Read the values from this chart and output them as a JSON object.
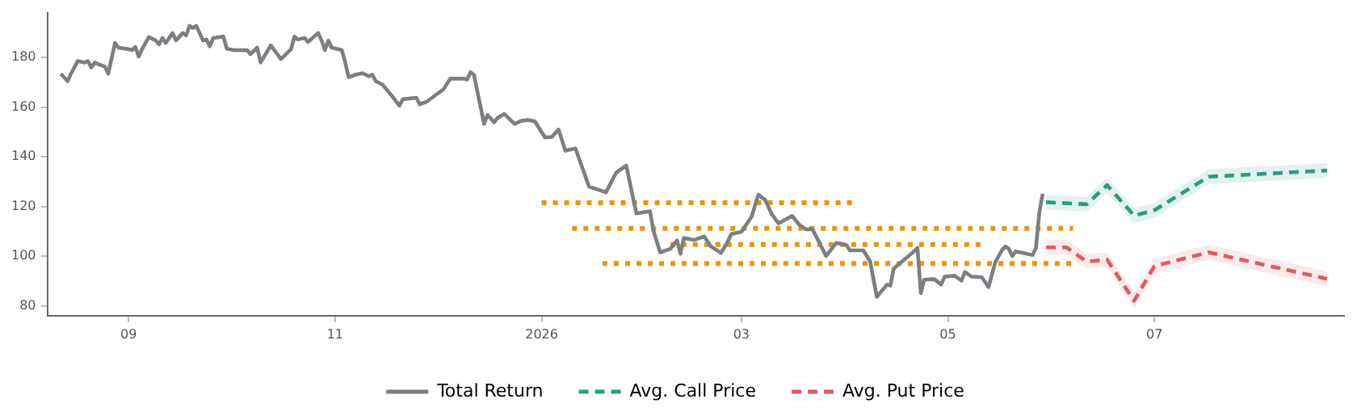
{
  "chart_data": {
    "type": "line",
    "xlim": [
      "2025-08-08",
      "2026-08-26"
    ],
    "ylim": [
      76,
      198
    ],
    "xticks": [
      {
        "value": "2025-09",
        "label": "09"
      },
      {
        "value": "2025-11",
        "label": "11"
      },
      {
        "value": "2026-01",
        "label": "2026"
      },
      {
        "value": "2026-03",
        "label": "03"
      },
      {
        "value": "2026-05",
        "label": "05"
      },
      {
        "value": "2026-07",
        "label": "07"
      }
    ],
    "yticks": [
      80,
      100,
      120,
      140,
      160,
      180
    ],
    "legend": "bottom",
    "marker": "none",
    "series": [
      {
        "name": "Total Return",
        "color": "#7b7f84",
        "line_style": "solid",
        "x": [
          "2025-08-12",
          "2025-08-14",
          "2025-08-15",
          "2025-08-17",
          "2025-08-19",
          "2025-08-20",
          "2025-08-21",
          "2025-08-22",
          "2025-08-23",
          "2025-08-25",
          "2025-08-26",
          "2025-08-28",
          "2025-08-29",
          "2025-09-01",
          "2025-09-02",
          "2025-09-03",
          "2025-09-04",
          "2025-09-05",
          "2025-09-07",
          "2025-09-09",
          "2025-09-10",
          "2025-09-11",
          "2025-09-12",
          "2025-09-14",
          "2025-09-15",
          "2025-09-17",
          "2025-09-18",
          "2025-09-19",
          "2025-09-20",
          "2025-09-21",
          "2025-09-23",
          "2025-09-24",
          "2025-09-25",
          "2025-09-26",
          "2025-09-29",
          "2025-09-30",
          "2025-10-02",
          "2025-10-06",
          "2025-10-07",
          "2025-10-09",
          "2025-10-10",
          "2025-10-13",
          "2025-10-16",
          "2025-10-19",
          "2025-10-20",
          "2025-10-21",
          "2025-10-23",
          "2025-10-24",
          "2025-10-27",
          "2025-10-28",
          "2025-10-29",
          "2025-10-30",
          "2025-10-31",
          "2025-11-03",
          "2025-11-04",
          "2025-11-05",
          "2025-11-07",
          "2025-11-09",
          "2025-11-11",
          "2025-11-12",
          "2025-11-13",
          "2025-11-15",
          "2025-11-16",
          "2025-11-18",
          "2025-11-20",
          "2025-11-21",
          "2025-11-25",
          "2025-11-26",
          "2025-11-28",
          "2025-12-01",
          "2025-12-03",
          "2025-12-05",
          "2025-12-09",
          "2025-12-10",
          "2025-12-11",
          "2025-12-12",
          "2025-12-15",
          "2025-12-16",
          "2025-12-18",
          "2025-12-19",
          "2025-12-21",
          "2025-12-24",
          "2025-12-26",
          "2025-12-28",
          "2025-12-30",
          "2026-01-02",
          "2026-01-04",
          "2026-01-06",
          "2026-01-08",
          "2026-01-11",
          "2026-01-15",
          "2026-01-20",
          "2026-01-23",
          "2026-01-26",
          "2026-01-27",
          "2026-01-29",
          "2026-02-02",
          "2026-02-03",
          "2026-02-05",
          "2026-02-08",
          "2026-02-10",
          "2026-02-11",
          "2026-02-12",
          "2026-02-15",
          "2026-02-18",
          "2026-02-19",
          "2026-02-20",
          "2026-02-23",
          "2026-02-25",
          "2026-02-26",
          "2026-03-01",
          "2026-03-04",
          "2026-03-06",
          "2026-03-08",
          "2026-03-10",
          "2026-03-12",
          "2026-03-16",
          "2026-03-18",
          "2026-03-20",
          "2026-03-22",
          "2026-03-24",
          "2026-03-26",
          "2026-03-29",
          "2026-04-01",
          "2026-04-02",
          "2026-04-06",
          "2026-04-08",
          "2026-04-10",
          "2026-04-13",
          "2026-04-14",
          "2026-04-15",
          "2026-04-21",
          "2026-04-22",
          "2026-04-23",
          "2026-04-24",
          "2026-04-27",
          "2026-04-29",
          "2026-04-30",
          "2026-05-03",
          "2026-05-05",
          "2026-05-06",
          "2026-05-08",
          "2026-05-11",
          "2026-05-13",
          "2026-05-15",
          "2026-05-17",
          "2026-05-18",
          "2026-05-19",
          "2026-05-20",
          "2026-05-21",
          "2026-05-23",
          "2026-05-26",
          "2026-05-27",
          "2026-05-28",
          "2026-05-29"
        ],
        "values": [
          173.5,
          170.5,
          173.5,
          178.6,
          178.0,
          178.6,
          176.0,
          178.0,
          177.4,
          176.4,
          173.5,
          185.9,
          184.0,
          183.4,
          183.0,
          184.3,
          180.4,
          183.4,
          188.3,
          186.9,
          185.3,
          187.9,
          185.9,
          189.9,
          186.9,
          189.9,
          188.9,
          192.8,
          191.9,
          192.8,
          186.9,
          187.3,
          184.5,
          187.9,
          188.5,
          183.6,
          183.0,
          183.0,
          181.4,
          184.0,
          178.0,
          184.9,
          179.4,
          183.4,
          188.5,
          187.3,
          187.9,
          186.3,
          189.9,
          186.9,
          183.0,
          186.9,
          184.0,
          183.0,
          178.0,
          172.1,
          173.1,
          173.7,
          172.5,
          173.1,
          170.5,
          169.1,
          167.5,
          164.2,
          160.6,
          163.2,
          163.8,
          161.2,
          162.2,
          165.2,
          167.2,
          171.5,
          171.5,
          171.1,
          174.1,
          173.1,
          153.3,
          156.9,
          153.9,
          155.7,
          157.3,
          153.3,
          154.5,
          154.9,
          154.3,
          147.8,
          148.0,
          151.0,
          142.5,
          143.4,
          128.0,
          125.7,
          133.6,
          136.5,
          130.0,
          117.2,
          118.1,
          110.4,
          101.5,
          102.9,
          106.3,
          100.9,
          107.3,
          106.5,
          107.9,
          105.9,
          103.9,
          101.3,
          105.9,
          108.9,
          109.8,
          115.8,
          124.7,
          122.7,
          116.8,
          113.2,
          116.2,
          112.8,
          110.8,
          110.8,
          105.5,
          100.0,
          105.3,
          104.5,
          102.3,
          102.3,
          98.0,
          83.6,
          88.5,
          88.1,
          95.0,
          101.9,
          103.3,
          85.1,
          90.5,
          90.7,
          88.5,
          91.7,
          92.1,
          90.1,
          93.6,
          91.7,
          91.5,
          87.5,
          97.6,
          102.5,
          103.9,
          102.9,
          100.0,
          101.9,
          101.3,
          100.4,
          103.3,
          117.7,
          125.1
        ]
      },
      {
        "name": "Avg. Call Price",
        "color": "#2a9d82",
        "line_style": "dashed",
        "x": [
          "2026-05-30",
          "2026-06-11",
          "2026-06-17",
          "2026-06-25",
          "2026-07-01",
          "2026-07-17",
          "2026-08-21"
        ],
        "values": [
          121.7,
          120.9,
          128.6,
          116.3,
          118.5,
          132.0,
          134.5
        ],
        "lower": [
          118.7,
          117.9,
          125.6,
          113.3,
          115.5,
          129.0,
          131.5
        ],
        "upper": [
          124.7,
          123.9,
          131.6,
          119.3,
          121.5,
          135.0,
          137.5
        ]
      },
      {
        "name": "Avg. Put Price",
        "color": "#e05a5f",
        "line_style": "dashed",
        "x": [
          "2026-05-30",
          "2026-06-05",
          "2026-06-11",
          "2026-06-17",
          "2026-06-25",
          "2026-07-01",
          "2026-07-17",
          "2026-08-21"
        ],
        "values": [
          103.5,
          103.5,
          97.8,
          98.6,
          82.0,
          96.0,
          101.5,
          90.8
        ],
        "lower": [
          100.5,
          100.5,
          94.8,
          95.6,
          79.0,
          93.0,
          98.5,
          87.8
        ],
        "upper": [
          106.5,
          106.5,
          100.8,
          101.6,
          85.0,
          99.0,
          104.5,
          93.8
        ]
      },
      {
        "color": "#e8960c",
        "line_style": "dotted",
        "x": [
          "2026-01-01",
          "2026-04-04"
        ],
        "values": [
          121.5,
          121.5
        ]
      },
      {
        "color": "#e8960c",
        "line_style": "dotted",
        "x": [
          "2026-01-10",
          "2026-06-07"
        ],
        "values": [
          111.2,
          111.2
        ]
      },
      {
        "color": "#e8960c",
        "line_style": "dotted",
        "x": [
          "2026-02-08",
          "2026-05-11"
        ],
        "values": [
          104.7,
          104.7
        ]
      },
      {
        "color": "#e8960c",
        "line_style": "dotted",
        "x": [
          "2026-01-19",
          "2026-06-08"
        ],
        "values": [
          97.0,
          97.0
        ]
      }
    ]
  }
}
